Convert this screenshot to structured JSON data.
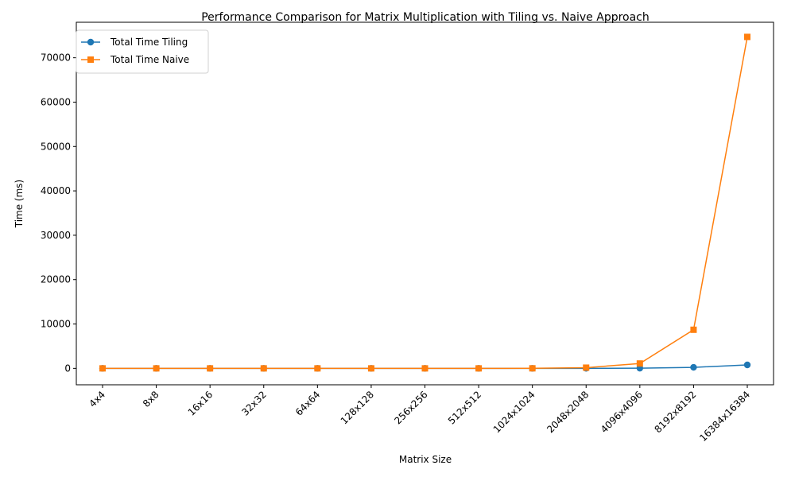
{
  "chart_data": {
    "type": "line",
    "title": "Performance Comparison for Matrix Multiplication with Tiling vs. Naive Approach",
    "xlabel": "Matrix Size",
    "ylabel": "Time (ms)",
    "categories": [
      "4x4",
      "8x8",
      "16x16",
      "32x32",
      "64x64",
      "128x128",
      "256x256",
      "512x512",
      "1024x1024",
      "2048x2048",
      "4096x4096",
      "8192x8192",
      "16384x16384"
    ],
    "ylim": [
      -3700,
      78000
    ],
    "yticks": [
      0,
      10000,
      20000,
      30000,
      40000,
      50000,
      60000,
      70000
    ],
    "ytick_labels": [
      "0",
      "10000",
      "20000",
      "30000",
      "40000",
      "50000",
      "60000",
      "70000"
    ],
    "grid": false,
    "legend_position": "top-left",
    "series": [
      {
        "name": "Total Time Tiling",
        "color": "#1f77b4",
        "marker": "circle",
        "values": [
          0,
          0,
          0,
          0,
          0,
          0,
          0,
          0,
          0,
          5,
          40,
          230,
          780
        ]
      },
      {
        "name": "Total Time Naive",
        "color": "#ff7f0e",
        "marker": "square",
        "values": [
          0,
          0,
          0,
          0,
          0,
          0,
          0,
          0,
          10,
          160,
          1100,
          8700,
          74700
        ]
      }
    ]
  }
}
